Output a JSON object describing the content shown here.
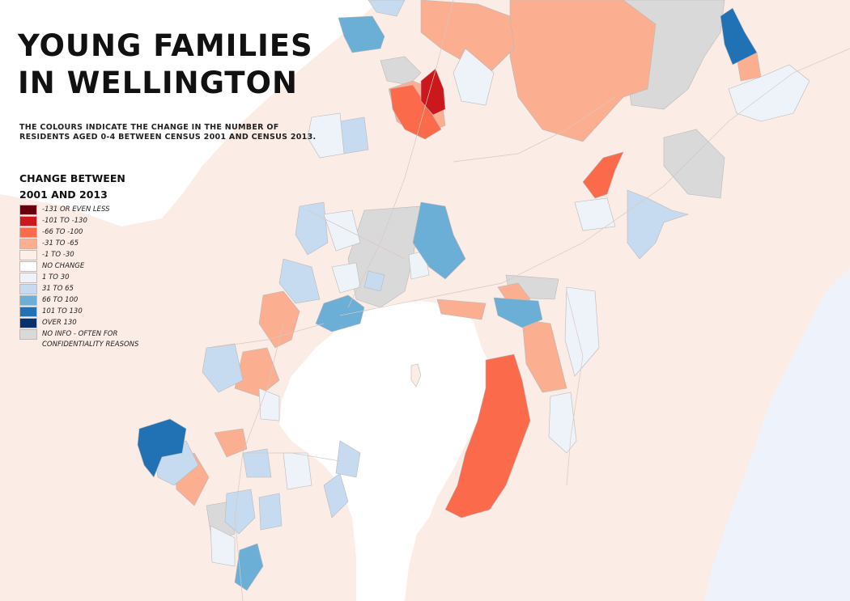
{
  "title": {
    "line1": "YOUNG FAMILIES",
    "line2": "IN WELLINGTON"
  },
  "subtitle": {
    "line1": "THE COLOURS INDICATE THE CHANGE IN THE NUMBER OF",
    "line2": "RESIDENTS AGED 0-4 BETWEEN CENSUS 2001 AND CENSUS 2013."
  },
  "legend": {
    "title_line1": "CHANGE BETWEEN",
    "title_line2": "2001 AND 2013",
    "items": [
      {
        "label": "-131 OR EVEN LESS",
        "color": "#67000d"
      },
      {
        "label": "-101 TO -130",
        "color": "#cb181d"
      },
      {
        "label": "-66 TO -100",
        "color": "#fb6a4a"
      },
      {
        "label": "-31 TO -65",
        "color": "#fcae91"
      },
      {
        "label": "-1 TO -30",
        "color": "#fdeee8"
      },
      {
        "label": "NO CHANGE",
        "color": "#ffffff"
      },
      {
        "label": "1 TO 30",
        "color": "#eef3fa"
      },
      {
        "label": "31 TO 65",
        "color": "#c6dbef"
      },
      {
        "label": "66 TO 100",
        "color": "#6baed6"
      },
      {
        "label": "101 TO 130",
        "color": "#2171b5"
      },
      {
        "label": "OVER 130",
        "color": "#08306b"
      },
      {
        "label": "NO INFO - OFTEN FOR",
        "sublabel": "CONFIDENTIALITY REASONS",
        "color": "#d9d9d9"
      }
    ]
  },
  "colors": {
    "land": "#fbece6",
    "water": "#ffffff",
    "outer_water": "#eef2fa",
    "road": "#d8c8c2",
    "boundary": "#b9b9b9"
  }
}
